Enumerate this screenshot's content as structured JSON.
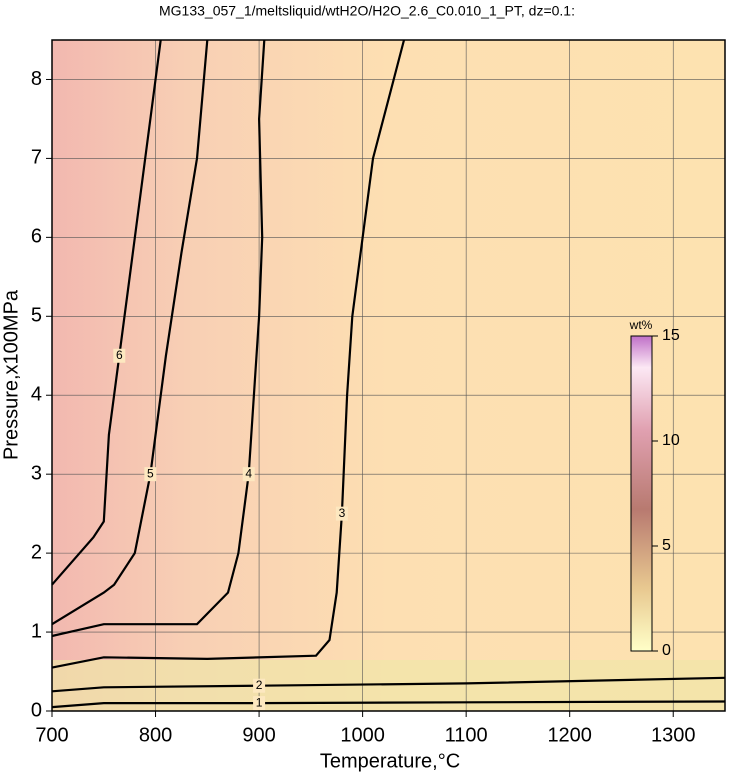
{
  "chart_data": {
    "type": "contour",
    "title": "MG133_057_1/meltsliquid/wtH2O/H2O_2.6_C0.010_1_PT, dz=0.1:",
    "xlabel": "Temperature,°C",
    "ylabel": "Pressure,x100MPa",
    "xlim": [
      700,
      1350
    ],
    "ylim": [
      0,
      8.5
    ],
    "xticks": [
      700,
      800,
      900,
      1000,
      1100,
      1200,
      1300
    ],
    "yticks": [
      0,
      1,
      2,
      3,
      4,
      5,
      6,
      7,
      8
    ],
    "grid": true,
    "series": [
      {
        "level": 1,
        "x": [
          700,
          750,
          900,
          1100,
          1350
        ],
        "y": [
          0.05,
          0.1,
          0.1,
          0.11,
          0.12
        ]
      },
      {
        "level": 2,
        "x": [
          700,
          750,
          900,
          1100,
          1350
        ],
        "y": [
          0.25,
          0.3,
          0.32,
          0.35,
          0.42
        ]
      },
      {
        "level": 3,
        "x": [
          700,
          750,
          850,
          955,
          968,
          975,
          980,
          985,
          990,
          1010,
          1030,
          1040
        ],
        "y": [
          0.55,
          0.68,
          0.66,
          0.7,
          0.9,
          1.5,
          2.5,
          4.0,
          5.0,
          7.0,
          8.0,
          8.5
        ]
      },
      {
        "level": 4,
        "x": [
          700,
          750,
          840,
          870,
          880,
          890,
          900,
          903,
          900,
          905
        ],
        "y": [
          0.95,
          1.1,
          1.1,
          1.5,
          2.0,
          3.0,
          5.0,
          6.0,
          7.5,
          8.5
        ]
      },
      {
        "level": 5,
        "x": [
          700,
          750,
          760,
          780,
          795,
          810,
          825,
          840,
          850
        ],
        "y": [
          1.1,
          1.5,
          1.6,
          2.0,
          3.0,
          4.5,
          5.8,
          7.0,
          8.5
        ]
      },
      {
        "level": 6,
        "x": [
          700,
          740,
          750,
          755,
          765,
          775,
          790,
          805
        ],
        "y": [
          1.6,
          2.2,
          2.4,
          3.5,
          4.5,
          5.5,
          7.0,
          8.5
        ]
      }
    ],
    "colorbar": {
      "label": "wt%",
      "lim": [
        0,
        15
      ],
      "ticks": [
        0,
        5,
        10,
        15
      ]
    }
  }
}
